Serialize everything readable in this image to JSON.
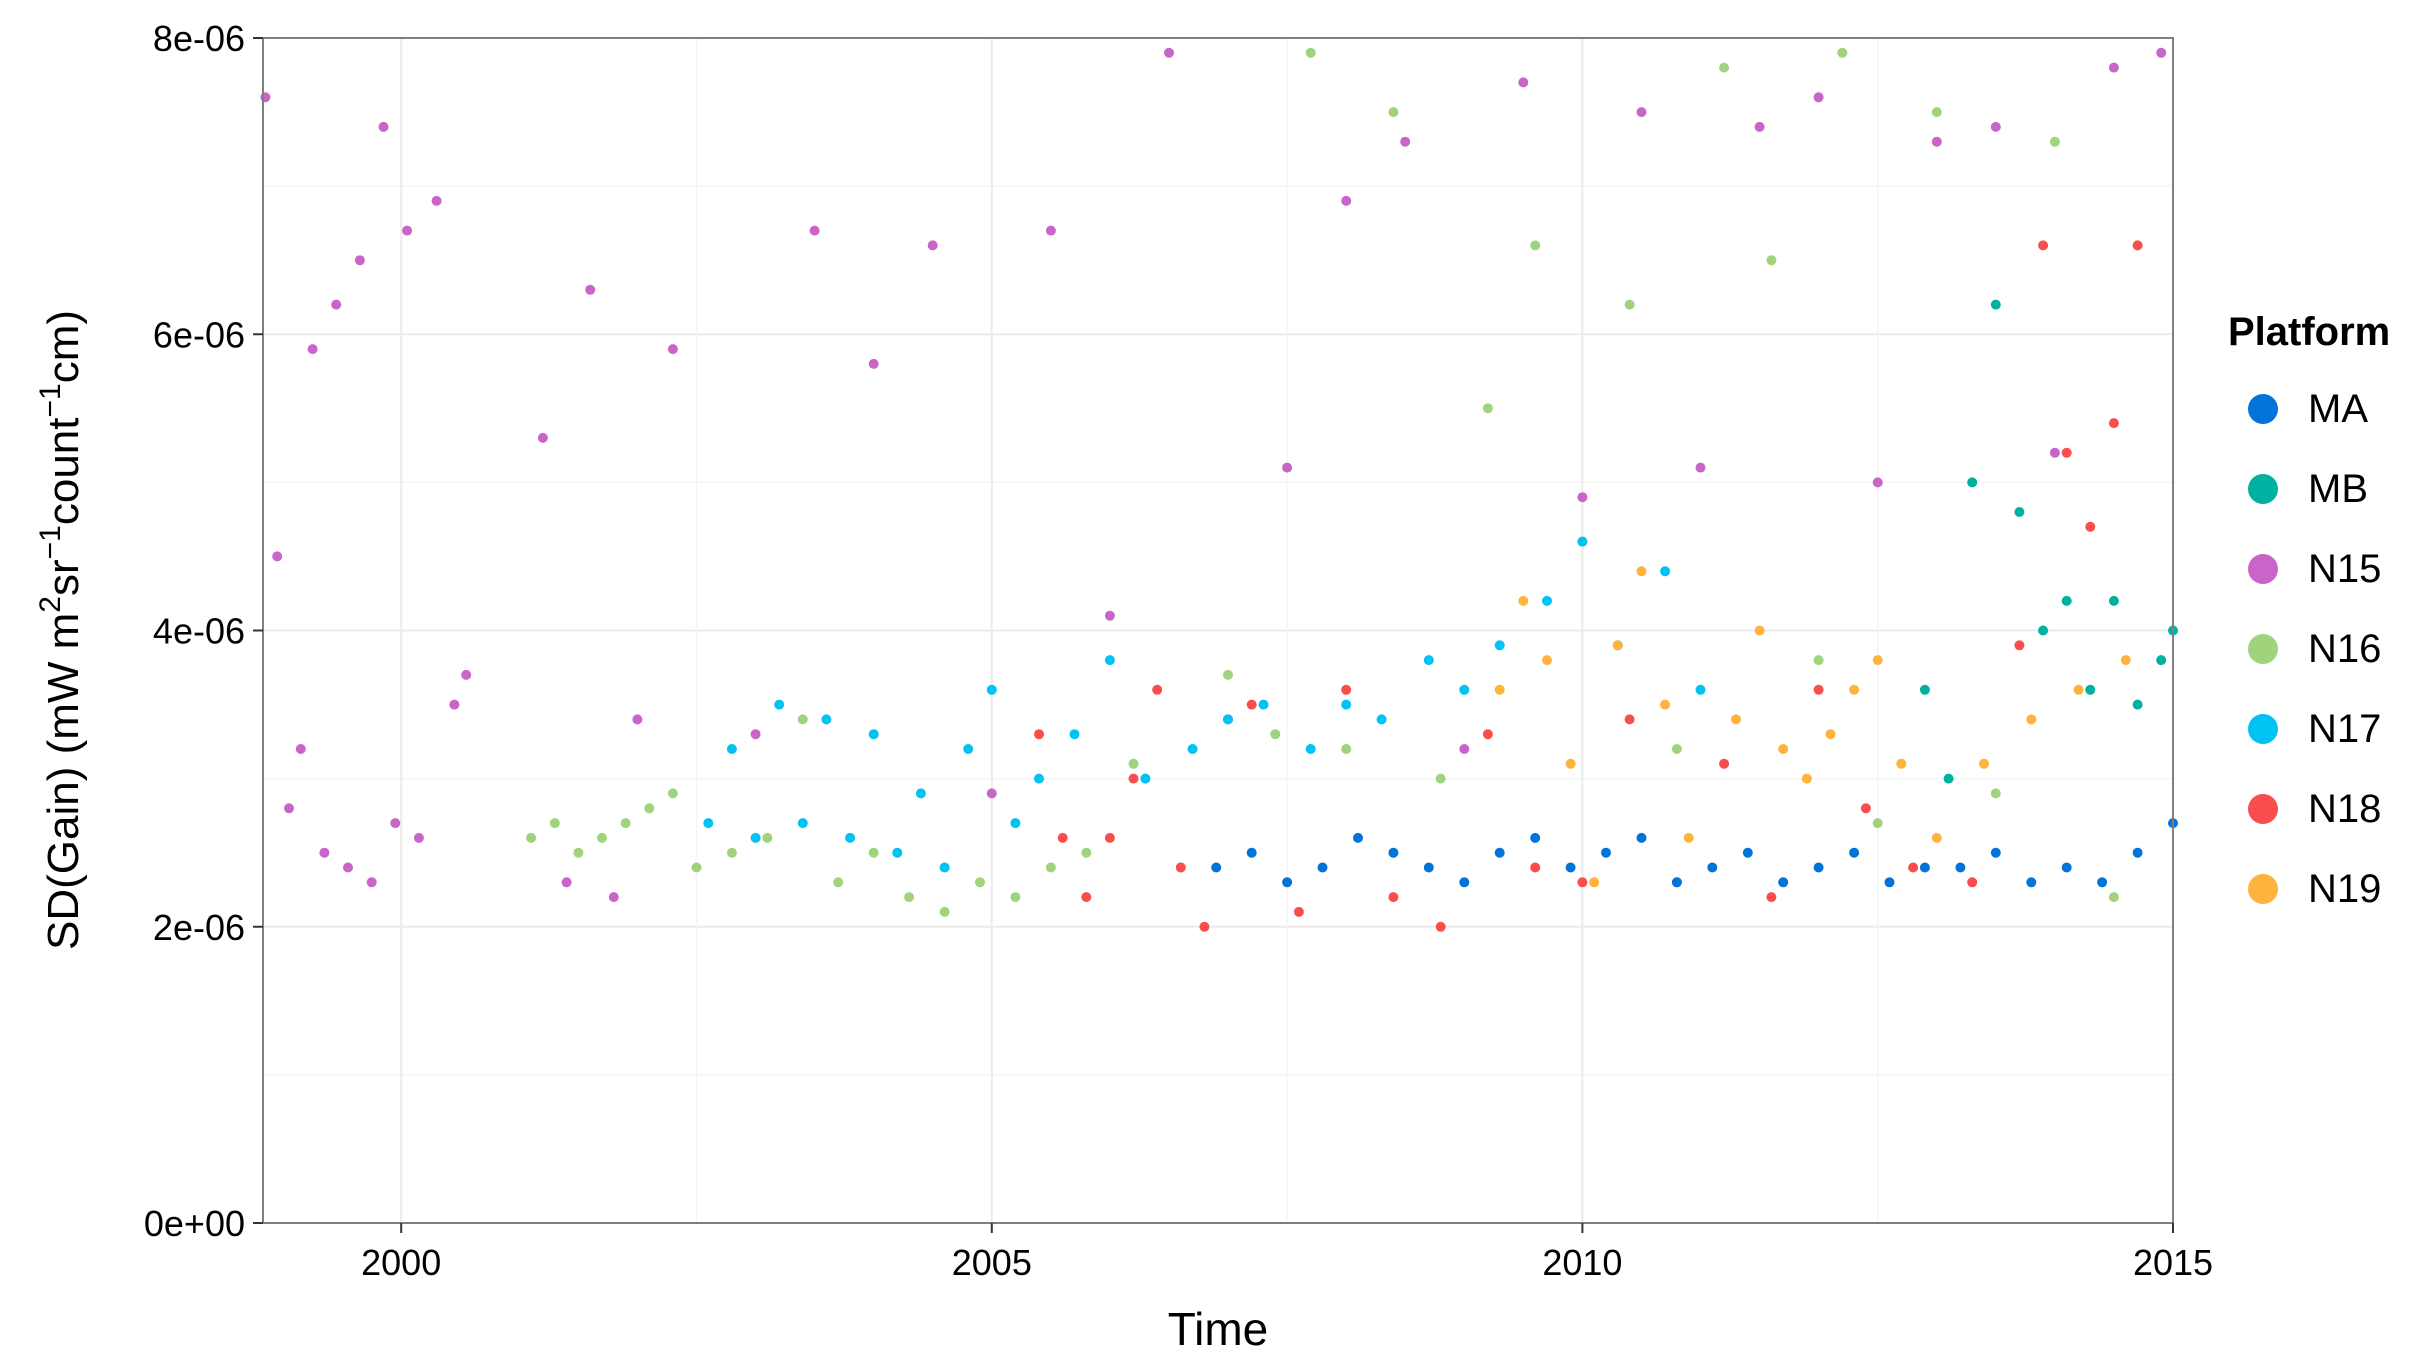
{
  "chart_data": {
    "type": "scatter",
    "title": "",
    "xlabel": "Time",
    "ylabel_parts": [
      "SD(Gain) (mW m",
      "2",
      "sr",
      "−1",
      "count",
      "−1",
      "cm)"
    ],
    "xlim": [
      1998.83,
      2015.0
    ],
    "ylim": [
      0,
      8e-06
    ],
    "x_ticks": [
      {
        "value": 2000,
        "label": "2000"
      },
      {
        "value": 2005,
        "label": "2005"
      },
      {
        "value": 2010,
        "label": "2010"
      },
      {
        "value": 2015,
        "label": "2015"
      }
    ],
    "y_ticks": [
      {
        "value": 0,
        "label": "0e+00"
      },
      {
        "value": 2e-06,
        "label": "2e-06"
      },
      {
        "value": 4e-06,
        "label": "4e-06"
      },
      {
        "value": 6e-06,
        "label": "6e-06"
      },
      {
        "value": 8e-06,
        "label": "8e-06"
      }
    ],
    "grid": true,
    "legend_title": "Platform",
    "legend_position": "right",
    "units_note": "y values in units of 1e-06",
    "series": [
      {
        "name": "N15",
        "color": "#C964C9",
        "x": [
          1998.85,
          1998.95,
          1999.05,
          1999.15,
          1999.25,
          1999.35,
          1999.45,
          1999.55,
          1999.65,
          1999.75,
          1999.85,
          1999.95,
          2000.05,
          2000.15,
          2000.3,
          2000.45,
          2000.55,
          2001.2,
          2001.4,
          2001.6,
          2001.8,
          2002.0,
          2002.3,
          2003.0,
          2003.5,
          2004.0,
          2004.5,
          2005.0,
          2005.5,
          2006.0,
          2006.5,
          2007.0,
          2007.5,
          2008.0,
          2008.5,
          2009.0,
          2009.5,
          2010.0,
          2010.5,
          2011.0,
          2011.5,
          2012.0,
          2012.5,
          2013.0,
          2013.5,
          2014.0,
          2014.5,
          2014.9
        ],
        "y": [
          7.6,
          4.5,
          2.8,
          3.2,
          5.9,
          2.5,
          6.2,
          2.4,
          6.5,
          2.3,
          7.4,
          2.7,
          6.7,
          2.6,
          6.9,
          3.5,
          3.7,
          5.3,
          2.3,
          6.3,
          2.2,
          3.4,
          5.9,
          3.3,
          6.7,
          5.8,
          6.6,
          2.9,
          6.7,
          4.1,
          7.9,
          3.4,
          5.1,
          6.9,
          7.3,
          3.2,
          7.7,
          4.9,
          7.5,
          5.1,
          7.4,
          7.6,
          5.0,
          7.3,
          7.4,
          5.2,
          7.8,
          7.9
        ]
      },
      {
        "name": "N16",
        "color": "#9FD47D",
        "x": [
          2001.1,
          2001.3,
          2001.5,
          2001.7,
          2001.9,
          2002.1,
          2002.3,
          2002.5,
          2002.8,
          2003.1,
          2003.4,
          2003.7,
          2004.0,
          2004.3,
          2004.6,
          2004.9,
          2005.2,
          2005.5,
          2005.8,
          2006.2,
          2006.6,
          2007.0,
          2007.4,
          2007.7,
          2008.0,
          2008.4,
          2008.8,
          2009.2,
          2009.6,
          2010.0,
          2010.4,
          2010.8,
          2011.2,
          2011.6,
          2012.0,
          2012.2,
          2012.5,
          2013.0,
          2013.5,
          2014.0,
          2014.5
        ],
        "y": [
          2.6,
          2.7,
          2.5,
          2.6,
          2.7,
          2.8,
          2.9,
          2.4,
          2.5,
          2.6,
          3.4,
          2.3,
          2.5,
          2.2,
          2.1,
          2.3,
          2.2,
          2.4,
          2.5,
          3.1,
          2.4,
          3.7,
          3.3,
          7.9,
          3.2,
          7.5,
          3.0,
          5.5,
          6.6,
          4.6,
          6.2,
          3.2,
          7.8,
          6.5,
          3.8,
          7.9,
          2.7,
          7.5,
          2.9,
          7.3,
          2.2
        ]
      },
      {
        "name": "N17",
        "color": "#00C3F4",
        "x": [
          2002.6,
          2002.8,
          2003.0,
          2003.2,
          2003.4,
          2003.6,
          2003.8,
          2004.0,
          2004.2,
          2004.4,
          2004.6,
          2004.8,
          2005.0,
          2005.2,
          2005.4,
          2005.7,
          2006.0,
          2006.3,
          2006.7,
          2007.0,
          2007.3,
          2007.7,
          2008.0,
          2008.3,
          2008.7,
          2009.0,
          2009.3,
          2009.7,
          2010.0,
          2010.3,
          2010.7,
          2011.0
        ],
        "y": [
          2.7,
          3.2,
          2.6,
          3.5,
          2.7,
          3.4,
          2.6,
          3.3,
          2.5,
          2.9,
          2.4,
          3.2,
          3.6,
          2.7,
          3.0,
          3.3,
          3.8,
          3.0,
          3.2,
          3.4,
          3.5,
          3.2,
          3.5,
          3.4,
          3.8,
          3.6,
          3.9,
          4.2,
          4.6,
          3.9,
          4.4,
          3.6
        ]
      },
      {
        "name": "N18",
        "color": "#FA4D4D",
        "x": [
          2005.4,
          2005.6,
          2005.8,
          2006.0,
          2006.2,
          2006.4,
          2006.6,
          2006.8,
          2007.2,
          2007.6,
          2008.0,
          2008.4,
          2008.8,
          2009.2,
          2009.6,
          2010.0,
          2010.4,
          2010.8,
          2011.2,
          2011.6,
          2012.0,
          2012.4,
          2012.8,
          2013.3,
          2013.7,
          2013.9,
          2014.1,
          2014.3,
          2014.5,
          2014.7
        ],
        "y": [
          3.3,
          2.6,
          2.2,
          2.6,
          3.0,
          3.6,
          2.4,
          2.0,
          3.5,
          2.1,
          3.6,
          2.2,
          2.0,
          3.3,
          2.4,
          2.3,
          3.4,
          2.3,
          3.1,
          2.2,
          3.6,
          2.8,
          2.4,
          2.3,
          3.9,
          6.6,
          5.2,
          4.7,
          5.4,
          6.6
        ]
      },
      {
        "name": "N19",
        "color": "#FFB33F",
        "x": [
          2009.3,
          2009.5,
          2009.7,
          2009.9,
          2010.1,
          2010.3,
          2010.5,
          2010.7,
          2010.9,
          2011.3,
          2011.5,
          2011.7,
          2011.9,
          2012.1,
          2012.3,
          2012.5,
          2012.7,
          2013.0,
          2013.4,
          2013.8,
          2014.2,
          2014.6
        ],
        "y": [
          3.6,
          4.2,
          3.8,
          3.1,
          2.3,
          3.9,
          4.4,
          3.5,
          2.6,
          3.4,
          4.0,
          3.2,
          3.0,
          3.3,
          3.6,
          3.8,
          3.1,
          2.6,
          3.1,
          3.4,
          3.6,
          3.8
        ]
      },
      {
        "name": "MB",
        "color": "#00B1A1",
        "x": [
          2012.9,
          2013.1,
          2013.3,
          2013.5,
          2013.7,
          2013.9,
          2014.1,
          2014.3,
          2014.5,
          2014.7,
          2014.9,
          2015.0
        ],
        "y": [
          3.6,
          3.0,
          5.0,
          6.2,
          4.8,
          4.0,
          4.2,
          3.6,
          4.2,
          3.5,
          3.8,
          4.0
        ]
      },
      {
        "name": "MA",
        "color": "#0074D9",
        "x": [
          2006.9,
          2007.2,
          2007.5,
          2007.8,
          2008.1,
          2008.4,
          2008.7,
          2009.0,
          2009.3,
          2009.6,
          2009.9,
          2010.2,
          2010.5,
          2010.8,
          2011.1,
          2011.4,
          2011.7,
          2012.0,
          2012.3,
          2012.6,
          2012.9,
          2013.2,
          2013.5,
          2013.8,
          2014.1,
          2014.4,
          2014.7,
          2015.0
        ],
        "y": [
          2.4,
          2.5,
          2.3,
          2.4,
          2.6,
          2.5,
          2.4,
          2.3,
          2.5,
          2.6,
          2.4,
          2.5,
          2.6,
          2.3,
          2.4,
          2.5,
          2.3,
          2.4,
          2.5,
          2.3,
          2.4,
          2.4,
          2.5,
          2.3,
          2.4,
          2.3,
          2.5,
          2.7
        ]
      }
    ],
    "legend_order": [
      "MA",
      "MB",
      "N15",
      "N16",
      "N17",
      "N18",
      "N19"
    ]
  }
}
